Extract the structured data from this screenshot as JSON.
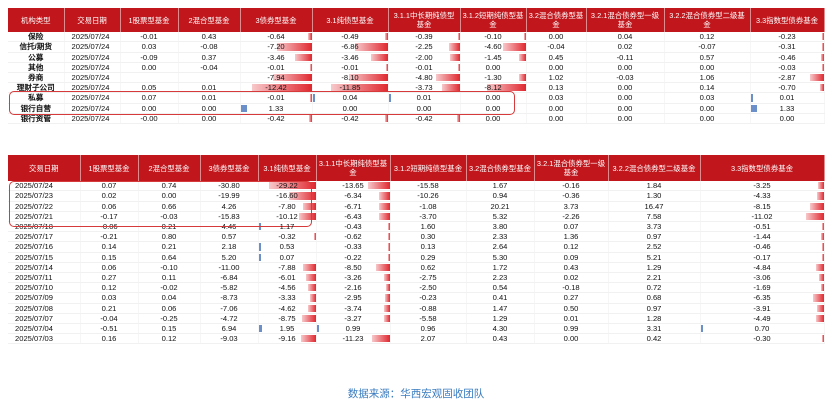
{
  "colors": {
    "header_bg": "#c0161c",
    "header_text": "#ffffff",
    "neg_bar": "#e0282f",
    "pos_bar": "#6a8fc9",
    "highlight_border": "#d63a3a",
    "source_text": "#3a7cc0"
  },
  "table1": {
    "headers": [
      "机构类型",
      "交易日期",
      "1股票型基金",
      "2混合型基金",
      "3债券型基金",
      "3.1纯债型基金",
      "3.1.1中长期纯债型基金",
      "3.1.2短期纯债型基金",
      "3.2混合债券型基金",
      "3.2.1混合债券型一级基金",
      "3.2.2混合债券型二级基金",
      "3.3指数型债券基金"
    ],
    "rows": [
      {
        "cat": "保险",
        "date": "2025/07/24",
        "v": [
          "-0.01",
          "0.43",
          "-0.64",
          "-0.49",
          "-0.39",
          "-0.10",
          "0.00",
          "0.04",
          "0.12",
          "-0.23"
        ]
      },
      {
        "cat": "信托/期货",
        "date": "2025/07/24",
        "v": [
          "0.03",
          "-0.08",
          "-7.20",
          "-6.86",
          "-2.25",
          "-4.60",
          "-0.04",
          "0.02",
          "-0.07",
          "-0.31"
        ]
      },
      {
        "cat": "公募",
        "date": "2025/07/24",
        "v": [
          "-0.09",
          "0.37",
          "-3.46",
          "-3.46",
          "-2.00",
          "-1.45",
          "0.45",
          "-0.11",
          "0.57",
          "-0.46"
        ]
      },
      {
        "cat": "其他",
        "date": "2025/07/24",
        "v": [
          "0.00",
          "-0.04",
          "-0.01",
          "-0.01",
          "-0.01",
          "0.00",
          "0.00",
          "0.00",
          "0.00",
          "-0.03"
        ]
      },
      {
        "cat": "券商",
        "date": "2025/07/24",
        "v": [
          "",
          "",
          "-7.94",
          "-8.10",
          "-4.80",
          "-1.30",
          "1.02",
          "-0.03",
          "1.06",
          "-2.87"
        ]
      },
      {
        "cat": "理财子公司",
        "date": "2025/07/24",
        "v": [
          "0.05",
          "0.01",
          "-12.42",
          "-11.85",
          "-3.73",
          "-8.12",
          "0.13",
          "0.00",
          "0.14",
          "-0.70"
        ]
      },
      {
        "cat": "私募",
        "date": "2025/07/24",
        "v": [
          "0.07",
          "0.01",
          "-0.01",
          "0.04",
          "0.01",
          "0.00",
          "0.03",
          "0.00",
          "0.03",
          "0.01"
        ]
      },
      {
        "cat": "银行自营",
        "date": "2025/07/24",
        "v": [
          "0.00",
          "0.00",
          "1.33",
          "0.00",
          "0.00",
          "0.00",
          "0.00",
          "0.00",
          "0.00",
          "1.33"
        ]
      },
      {
        "cat": "银行资管",
        "date": "2025/07/24",
        "v": [
          "-0.00",
          "0.00",
          "-0.42",
          "-0.42",
          "-0.42",
          "0.00",
          "0.00",
          "0.00",
          "0.00",
          "0.00"
        ]
      }
    ]
  },
  "table2": {
    "headers": [
      "交易日期",
      "1股票型基金",
      "2混合型基金",
      "3债券型基金",
      "3.1纯债型基金",
      "3.1.1中长期纯债型基金",
      "3.1.2短期纯债型基金",
      "3.2混合债券型基金",
      "3.2.1混合债券型一级基金",
      "3.2.2混合债券型二级基金",
      "3.3指数型债券基金"
    ],
    "rows": [
      {
        "date": "2025/07/24",
        "v": [
          "0.07",
          "0.74",
          "-30.80",
          "-29.22",
          "-13.65",
          "-15.58",
          "1.67",
          "-0.16",
          "1.84",
          "-3.25"
        ]
      },
      {
        "date": "2025/07/23",
        "v": [
          "0.02",
          "0.00",
          "-19.99",
          "-16.60",
          "-6.34",
          "-10.26",
          "0.94",
          "-0.36",
          "1.30",
          "-4.33"
        ]
      },
      {
        "date": "2025/07/22",
        "v": [
          "0.06",
          "0.66",
          "4.26",
          "-7.80",
          "-6.71",
          "-1.08",
          "20.21",
          "3.73",
          "16.47",
          "-8.15"
        ]
      },
      {
        "date": "2025/07/21",
        "v": [
          "-0.17",
          "-0.03",
          "-15.83",
          "-10.12",
          "-6.43",
          "-3.70",
          "5.32",
          "-2.26",
          "7.58",
          "-11.02"
        ]
      },
      {
        "date": "2025/07/18",
        "v": [
          "-0.06",
          "0.21",
          "4.46",
          "1.17",
          "-0.43",
          "1.60",
          "3.80",
          "0.07",
          "3.73",
          "-0.51"
        ]
      },
      {
        "date": "2025/07/17",
        "v": [
          "-0.21",
          "0.80",
          "0.57",
          "-0.32",
          "-0.62",
          "0.30",
          "2.33",
          "1.36",
          "0.97",
          "-1.44"
        ]
      },
      {
        "date": "2025/07/16",
        "v": [
          "0.14",
          "0.21",
          "2.18",
          "0.53",
          "-0.33",
          "0.13",
          "2.64",
          "0.12",
          "2.52",
          "-0.46"
        ]
      },
      {
        "date": "2025/07/15",
        "v": [
          "0.15",
          "0.64",
          "5.20",
          "0.07",
          "-0.22",
          "0.29",
          "5.30",
          "0.09",
          "5.21",
          "-0.17"
        ]
      },
      {
        "date": "2025/07/14",
        "v": [
          "0.06",
          "-0.10",
          "-11.00",
          "-7.88",
          "-8.50",
          "0.62",
          "1.72",
          "0.43",
          "1.29",
          "-4.84"
        ]
      },
      {
        "date": "2025/07/11",
        "v": [
          "0.27",
          "0.11",
          "-6.84",
          "-6.01",
          "-3.26",
          "-2.75",
          "2.23",
          "0.02",
          "2.21",
          "-3.06"
        ]
      },
      {
        "date": "2025/07/10",
        "v": [
          "0.12",
          "-0.02",
          "-5.82",
          "-4.56",
          "-2.16",
          "-2.50",
          "0.54",
          "-0.18",
          "0.72",
          "-1.69"
        ]
      },
      {
        "date": "2025/07/09",
        "v": [
          "0.03",
          "0.04",
          "-8.73",
          "-3.33",
          "-2.95",
          "-0.23",
          "0.41",
          "0.27",
          "0.68",
          "-6.35"
        ]
      },
      {
        "date": "2025/07/08",
        "v": [
          "0.21",
          "0.06",
          "-7.06",
          "-4.62",
          "-3.74",
          "-0.88",
          "1.47",
          "0.50",
          "0.97",
          "-3.91"
        ]
      },
      {
        "date": "2025/07/07",
        "v": [
          "-0.04",
          "-0.25",
          "-4.72",
          "-8.75",
          "-3.27",
          "-5.58",
          "1.29",
          "0.01",
          "1.28",
          "-4.49"
        ]
      },
      {
        "date": "2025/07/04",
        "v": [
          "-0.51",
          "0.15",
          "6.94",
          "1.95",
          "0.99",
          "0.96",
          "4.30",
          "0.99",
          "3.31",
          "0.70"
        ]
      },
      {
        "date": "2025/07/03",
        "v": [
          "0.16",
          "0.12",
          "-9.03",
          "-9.16",
          "-11.23",
          "2.07",
          "0.43",
          "0.00",
          "0.42",
          "-0.30"
        ]
      }
    ]
  },
  "source_text": "数据来源：华西宏观固收团队"
}
